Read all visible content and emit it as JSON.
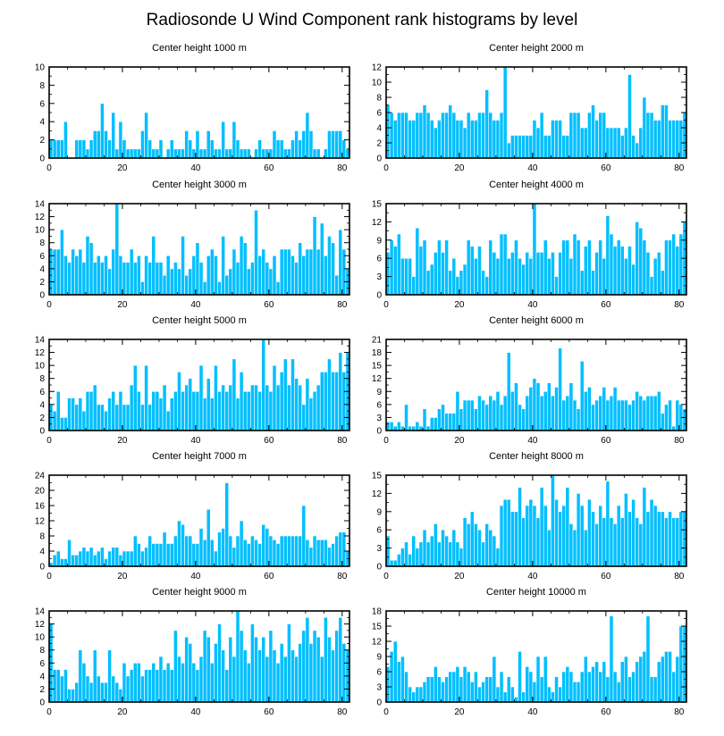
{
  "title": "Radiosonde U Wind Component rank histograms by level",
  "colors": {
    "bar": "#00bfff",
    "bar_stroke": "#ffffff",
    "axis": "#000000",
    "background": "#ffffff"
  },
  "chart_data": [
    {
      "type": "bar",
      "title": "Center height 1000 m",
      "x_start": 0,
      "xlim": [
        0,
        82
      ],
      "ylim": [
        0,
        10
      ],
      "xticks": [
        0,
        20,
        40,
        60,
        80
      ],
      "yticks": [
        0,
        2,
        4,
        6,
        8,
        10
      ],
      "values": [
        2,
        2,
        2,
        2,
        4,
        0,
        0,
        2,
        2,
        2,
        1,
        2,
        3,
        3,
        6,
        3,
        2,
        5,
        1,
        4,
        2,
        1,
        1,
        1,
        1,
        3,
        5,
        2,
        1,
        1,
        2,
        0,
        1,
        2,
        1,
        1,
        1,
        3,
        2,
        1,
        3,
        1,
        1,
        3,
        2,
        1,
        1,
        4,
        1,
        1,
        4,
        2,
        1,
        1,
        1,
        0,
        1,
        2,
        1,
        1,
        1,
        3,
        2,
        2,
        1,
        1,
        2,
        3,
        2,
        3,
        5,
        3,
        1,
        1,
        0,
        1,
        3,
        3,
        3,
        3,
        2,
        1
      ]
    },
    {
      "type": "bar",
      "title": "Center height 2000 m",
      "x_start": 0,
      "xlim": [
        0,
        82
      ],
      "ylim": [
        0,
        12
      ],
      "xticks": [
        0,
        20,
        40,
        60,
        80
      ],
      "yticks": [
        0,
        2,
        4,
        6,
        8,
        10,
        12
      ],
      "values": [
        7,
        6,
        5,
        6,
        6,
        6,
        5,
        5,
        6,
        6,
        7,
        6,
        5,
        4,
        5,
        6,
        6,
        7,
        6,
        5,
        5,
        4,
        6,
        5,
        5,
        6,
        6,
        9,
        6,
        5,
        5,
        6,
        12,
        2,
        3,
        3,
        3,
        3,
        3,
        3,
        5,
        4,
        6,
        3,
        3,
        5,
        5,
        5,
        3,
        3,
        6,
        6,
        6,
        4,
        4,
        6,
        7,
        5,
        6,
        6,
        4,
        4,
        4,
        4,
        3,
        4,
        11,
        3,
        2,
        4,
        8,
        6,
        6,
        5,
        5,
        7,
        7,
        5,
        5,
        5,
        5,
        6
      ]
    },
    {
      "type": "bar",
      "title": "Center height 3000 m",
      "x_start": 0,
      "xlim": [
        0,
        82
      ],
      "ylim": [
        0,
        14
      ],
      "xticks": [
        0,
        20,
        40,
        60,
        80
      ],
      "yticks": [
        0,
        2,
        4,
        6,
        8,
        10,
        12,
        14
      ],
      "values": [
        7,
        7,
        7,
        10,
        6,
        5,
        7,
        6,
        7,
        5,
        9,
        8,
        5,
        6,
        5,
        6,
        4,
        7,
        14,
        6,
        5,
        5,
        7,
        5,
        6,
        2,
        6,
        5,
        9,
        5,
        5,
        3,
        6,
        4,
        5,
        4,
        9,
        3,
        4,
        6,
        8,
        5,
        2,
        6,
        7,
        6,
        2,
        9,
        3,
        4,
        7,
        5,
        9,
        8,
        4,
        5,
        13,
        6,
        7,
        5,
        4,
        6,
        2,
        7,
        7,
        7,
        6,
        5,
        8,
        6,
        7,
        7,
        12,
        7,
        11,
        6,
        9,
        8,
        3,
        10,
        7,
        4
      ]
    },
    {
      "type": "bar",
      "title": "Center height 4000 m",
      "x_start": 0,
      "xlim": [
        0,
        82
      ],
      "ylim": [
        0,
        15
      ],
      "xticks": [
        0,
        20,
        40,
        60,
        80
      ],
      "yticks": [
        0,
        3,
        6,
        9,
        12,
        15
      ],
      "values": [
        7,
        9,
        8,
        10,
        6,
        6,
        6,
        3,
        11,
        8,
        9,
        4,
        5,
        7,
        9,
        7,
        9,
        4,
        6,
        3,
        4,
        5,
        9,
        8,
        6,
        8,
        4,
        3,
        9,
        7,
        6,
        10,
        10,
        6,
        7,
        9,
        6,
        5,
        7,
        6,
        15,
        7,
        7,
        9,
        6,
        7,
        3,
        7,
        9,
        9,
        6,
        10,
        9,
        4,
        8,
        9,
        4,
        7,
        9,
        6,
        13,
        10,
        8,
        9,
        8,
        6,
        8,
        5,
        12,
        11,
        9,
        7,
        3,
        6,
        7,
        4,
        9,
        9,
        10,
        8,
        10,
        12
      ]
    },
    {
      "type": "bar",
      "title": "Center height 5000 m",
      "x_start": 0,
      "xlim": [
        0,
        82
      ],
      "ylim": [
        0,
        14
      ],
      "xticks": [
        0,
        20,
        40,
        60,
        80
      ],
      "yticks": [
        0,
        2,
        4,
        6,
        8,
        10,
        12,
        14
      ],
      "values": [
        4,
        3,
        6,
        2,
        2,
        5,
        5,
        4,
        5,
        3,
        6,
        6,
        7,
        4,
        4,
        3,
        5,
        6,
        4,
        6,
        4,
        4,
        7,
        10,
        6,
        4,
        10,
        4,
        6,
        6,
        5,
        7,
        3,
        5,
        6,
        9,
        6,
        7,
        8,
        6,
        6,
        10,
        5,
        8,
        5,
        10,
        6,
        7,
        6,
        7,
        11,
        5,
        9,
        6,
        6,
        7,
        7,
        6,
        14,
        7,
        6,
        10,
        7,
        9,
        11,
        7,
        11,
        8,
        7,
        4,
        8,
        5,
        6,
        7,
        9,
        9,
        11,
        9,
        9,
        12,
        9,
        12
      ]
    },
    {
      "type": "bar",
      "title": "Center height 6000 m",
      "x_start": 0,
      "xlim": [
        0,
        82
      ],
      "ylim": [
        0,
        21
      ],
      "xticks": [
        0,
        20,
        40,
        60,
        80
      ],
      "yticks": [
        0,
        3,
        6,
        9,
        12,
        15,
        18,
        21
      ],
      "values": [
        2,
        2,
        1,
        2,
        1,
        6,
        1,
        1,
        2,
        1,
        5,
        1,
        3,
        3,
        5,
        6,
        4,
        4,
        4,
        9,
        5,
        7,
        7,
        7,
        5,
        8,
        7,
        6,
        8,
        7,
        9,
        6,
        8,
        18,
        9,
        11,
        6,
        5,
        8,
        10,
        12,
        11,
        8,
        9,
        11,
        8,
        10,
        19,
        7,
        8,
        11,
        7,
        5,
        16,
        9,
        10,
        6,
        7,
        8,
        10,
        7,
        8,
        10,
        7,
        7,
        7,
        6,
        7,
        9,
        8,
        7,
        8,
        8,
        8,
        9,
        4,
        6,
        7,
        1,
        7,
        6,
        5
      ]
    },
    {
      "type": "bar",
      "title": "Center height 7000 m",
      "x_start": 0,
      "xlim": [
        0,
        82
      ],
      "ylim": [
        0,
        24
      ],
      "xticks": [
        0,
        20,
        40,
        60,
        80
      ],
      "yticks": [
        0,
        4,
        8,
        12,
        16,
        20,
        24
      ],
      "values": [
        1,
        3,
        4,
        2,
        2,
        7,
        3,
        3,
        4,
        5,
        4,
        5,
        3,
        4,
        5,
        2,
        4,
        5,
        5,
        3,
        4,
        4,
        4,
        8,
        6,
        4,
        5,
        8,
        6,
        6,
        6,
        9,
        6,
        6,
        8,
        12,
        11,
        8,
        8,
        6,
        6,
        10,
        7,
        15,
        7,
        4,
        9,
        10,
        22,
        8,
        5,
        8,
        12,
        7,
        6,
        8,
        7,
        6,
        11,
        10,
        8,
        7,
        6,
        8,
        8,
        8,
        8,
        8,
        8,
        16,
        7,
        5,
        8,
        7,
        7,
        7,
        5,
        6,
        8,
        9,
        9,
        4
      ]
    },
    {
      "type": "bar",
      "title": "Center height 8000 m",
      "x_start": 0,
      "xlim": [
        0,
        82
      ],
      "ylim": [
        0,
        15
      ],
      "xticks": [
        0,
        20,
        40,
        60,
        80
      ],
      "yticks": [
        0,
        3,
        6,
        9,
        12,
        15
      ],
      "values": [
        5,
        1,
        1,
        2,
        3,
        4,
        2,
        5,
        3,
        4,
        6,
        4,
        5,
        7,
        4,
        6,
        5,
        4,
        6,
        4,
        3,
        8,
        7,
        9,
        7,
        6,
        4,
        7,
        6,
        5,
        3,
        10,
        11,
        11,
        9,
        9,
        13,
        8,
        10,
        11,
        10,
        8,
        13,
        10,
        6,
        15,
        11,
        9,
        10,
        13,
        7,
        6,
        12,
        10,
        6,
        11,
        9,
        7,
        10,
        8,
        14,
        8,
        7,
        10,
        8,
        12,
        9,
        11,
        8,
        7,
        13,
        9,
        11,
        10,
        9,
        9,
        8,
        9,
        8,
        8,
        9,
        9
      ]
    },
    {
      "type": "bar",
      "title": "Center height 9000 m",
      "x_start": 0,
      "xlim": [
        0,
        82
      ],
      "ylim": [
        0,
        14
      ],
      "xticks": [
        0,
        20,
        40,
        60,
        80
      ],
      "yticks": [
        0,
        2,
        4,
        6,
        8,
        10,
        12,
        14
      ],
      "values": [
        12,
        5,
        5,
        4,
        5,
        2,
        2,
        3,
        8,
        6,
        4,
        3,
        8,
        4,
        3,
        3,
        8,
        4,
        3,
        2,
        6,
        4,
        5,
        6,
        6,
        4,
        5,
        5,
        6,
        5,
        7,
        5,
        6,
        5,
        11,
        7,
        6,
        10,
        9,
        6,
        5,
        7,
        11,
        10,
        6,
        9,
        12,
        8,
        5,
        10,
        7,
        14,
        11,
        8,
        6,
        12,
        10,
        8,
        10,
        7,
        11,
        8,
        6,
        9,
        7,
        12,
        8,
        7,
        9,
        11,
        13,
        9,
        11,
        10,
        7,
        13,
        10,
        8,
        11,
        13,
        9,
        8
      ]
    },
    {
      "type": "bar",
      "title": "Center height 10000 m",
      "x_start": 0,
      "xlim": [
        0,
        82
      ],
      "ylim": [
        0,
        18
      ],
      "xticks": [
        0,
        20,
        40,
        60,
        80
      ],
      "yticks": [
        0,
        3,
        6,
        9,
        12,
        15,
        18
      ],
      "values": [
        7,
        10,
        12,
        8,
        9,
        6,
        3,
        2,
        3,
        3,
        4,
        5,
        5,
        7,
        5,
        4,
        5,
        6,
        6,
        7,
        5,
        7,
        6,
        4,
        6,
        3,
        4,
        5,
        5,
        9,
        3,
        6,
        2,
        5,
        3,
        1,
        10,
        2,
        7,
        6,
        4,
        9,
        5,
        9,
        3,
        2,
        5,
        3,
        6,
        7,
        6,
        4,
        4,
        6,
        9,
        6,
        7,
        8,
        6,
        8,
        5,
        17,
        6,
        4,
        8,
        9,
        5,
        6,
        8,
        9,
        10,
        17,
        5,
        5,
        8,
        9,
        10,
        10,
        6,
        9,
        15,
        15
      ]
    }
  ]
}
